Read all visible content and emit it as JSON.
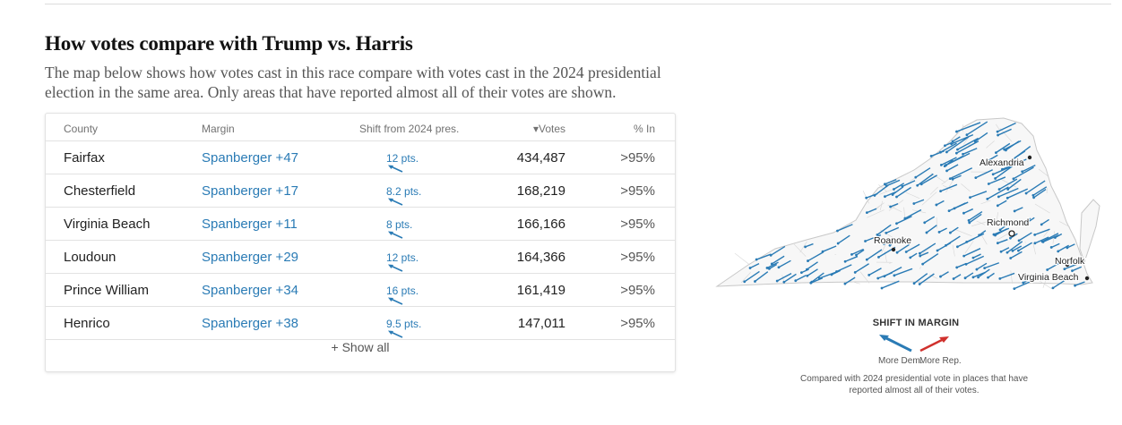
{
  "header": {
    "title": "How votes compare with Trump vs. Harris",
    "description": "The map below shows how votes cast in this race compare with votes cast in the 2024 presidential election in the same area. Only areas that have reported almost all of their votes are shown."
  },
  "table": {
    "columns": {
      "county": "County",
      "margin": "Margin",
      "shift": "Shift from 2024 pres.",
      "votes": "▾Votes",
      "pct_in": "% In"
    },
    "rows": [
      {
        "county": "Fairfax",
        "margin": "Spanberger +47",
        "shift": "12 pts.",
        "votes": "434,487",
        "pct_in": ">95%"
      },
      {
        "county": "Chesterfield",
        "margin": "Spanberger +17",
        "shift": "8.2 pts.",
        "votes": "168,219",
        "pct_in": ">95%"
      },
      {
        "county": "Virginia Beach",
        "margin": "Spanberger +11",
        "shift": "8 pts.",
        "votes": "166,166",
        "pct_in": ">95%"
      },
      {
        "county": "Loudoun",
        "margin": "Spanberger +29",
        "shift": "12 pts.",
        "votes": "164,366",
        "pct_in": ">95%"
      },
      {
        "county": "Prince William",
        "margin": "Spanberger +34",
        "shift": "16 pts.",
        "votes": "161,419",
        "pct_in": ">95%"
      },
      {
        "county": "Henrico",
        "margin": "Spanberger +38",
        "shift": "9.5 pts.",
        "votes": "147,011",
        "pct_in": ">95%"
      }
    ],
    "show_all_label": "+ Show all"
  },
  "map": {
    "cities": {
      "alexandria": "Alexandria",
      "richmond": "Richmond",
      "roanoke": "Roanoke",
      "norfolk": "Norfolk",
      "virginia_beach": "Virginia Beach"
    }
  },
  "legend": {
    "title": "SHIFT IN MARGIN",
    "dem_label": "More Dem.",
    "rep_label": "More Rep.",
    "note": "Compared with 2024 presidential vote in places that have reported almost all of their votes.",
    "dem_color": "#2a7bb5",
    "rep_color": "#d0312d"
  },
  "colors": {
    "accent_blue": "#2a7bb5",
    "rule": "#e2e2e2"
  }
}
